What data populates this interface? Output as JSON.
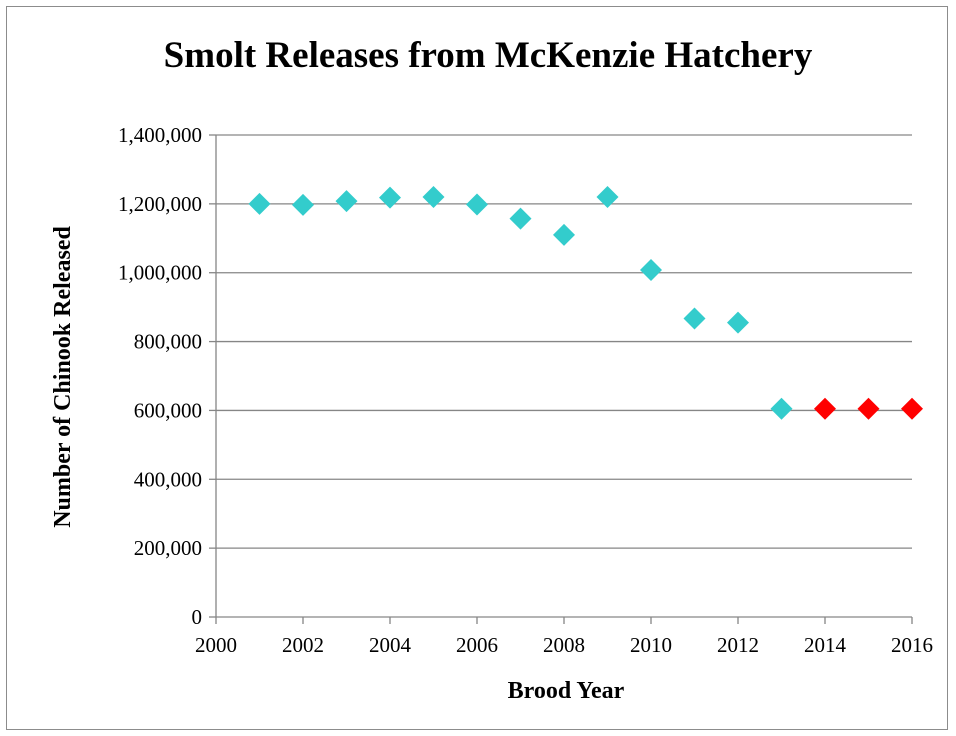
{
  "chart_data": {
    "type": "scatter",
    "title": "Smolt Releases from McKenzie Hatchery",
    "xlabel": "Brood Year",
    "ylabel": "Number of Chinook Released",
    "xlim": [
      2000,
      2016
    ],
    "ylim": [
      0,
      1400000
    ],
    "x_ticks": [
      "2000",
      "2002",
      "2004",
      "2006",
      "2008",
      "2010",
      "2012",
      "2014",
      "2016"
    ],
    "y_ticks": [
      "0",
      "200,000",
      "400,000",
      "600,000",
      "800,000",
      "1,000,000",
      "1,200,000",
      "1,400,000"
    ],
    "grid": "horizontal",
    "legend": "none",
    "marker": "diamond",
    "series": [
      {
        "color": "#33CCCC",
        "x": [
          2001,
          2002,
          2003,
          2004,
          2005,
          2006,
          2007,
          2008,
          2009,
          2010,
          2011,
          2012,
          2013
        ],
        "y": [
          1200000,
          1197000,
          1208000,
          1218000,
          1220000,
          1198000,
          1157000,
          1110000,
          1220000,
          1008000,
          867000,
          855000,
          605000
        ]
      },
      {
        "color": "#FF0000",
        "x": [
          2014,
          2015,
          2016
        ],
        "y": [
          605000,
          605000,
          605000
        ]
      }
    ]
  }
}
